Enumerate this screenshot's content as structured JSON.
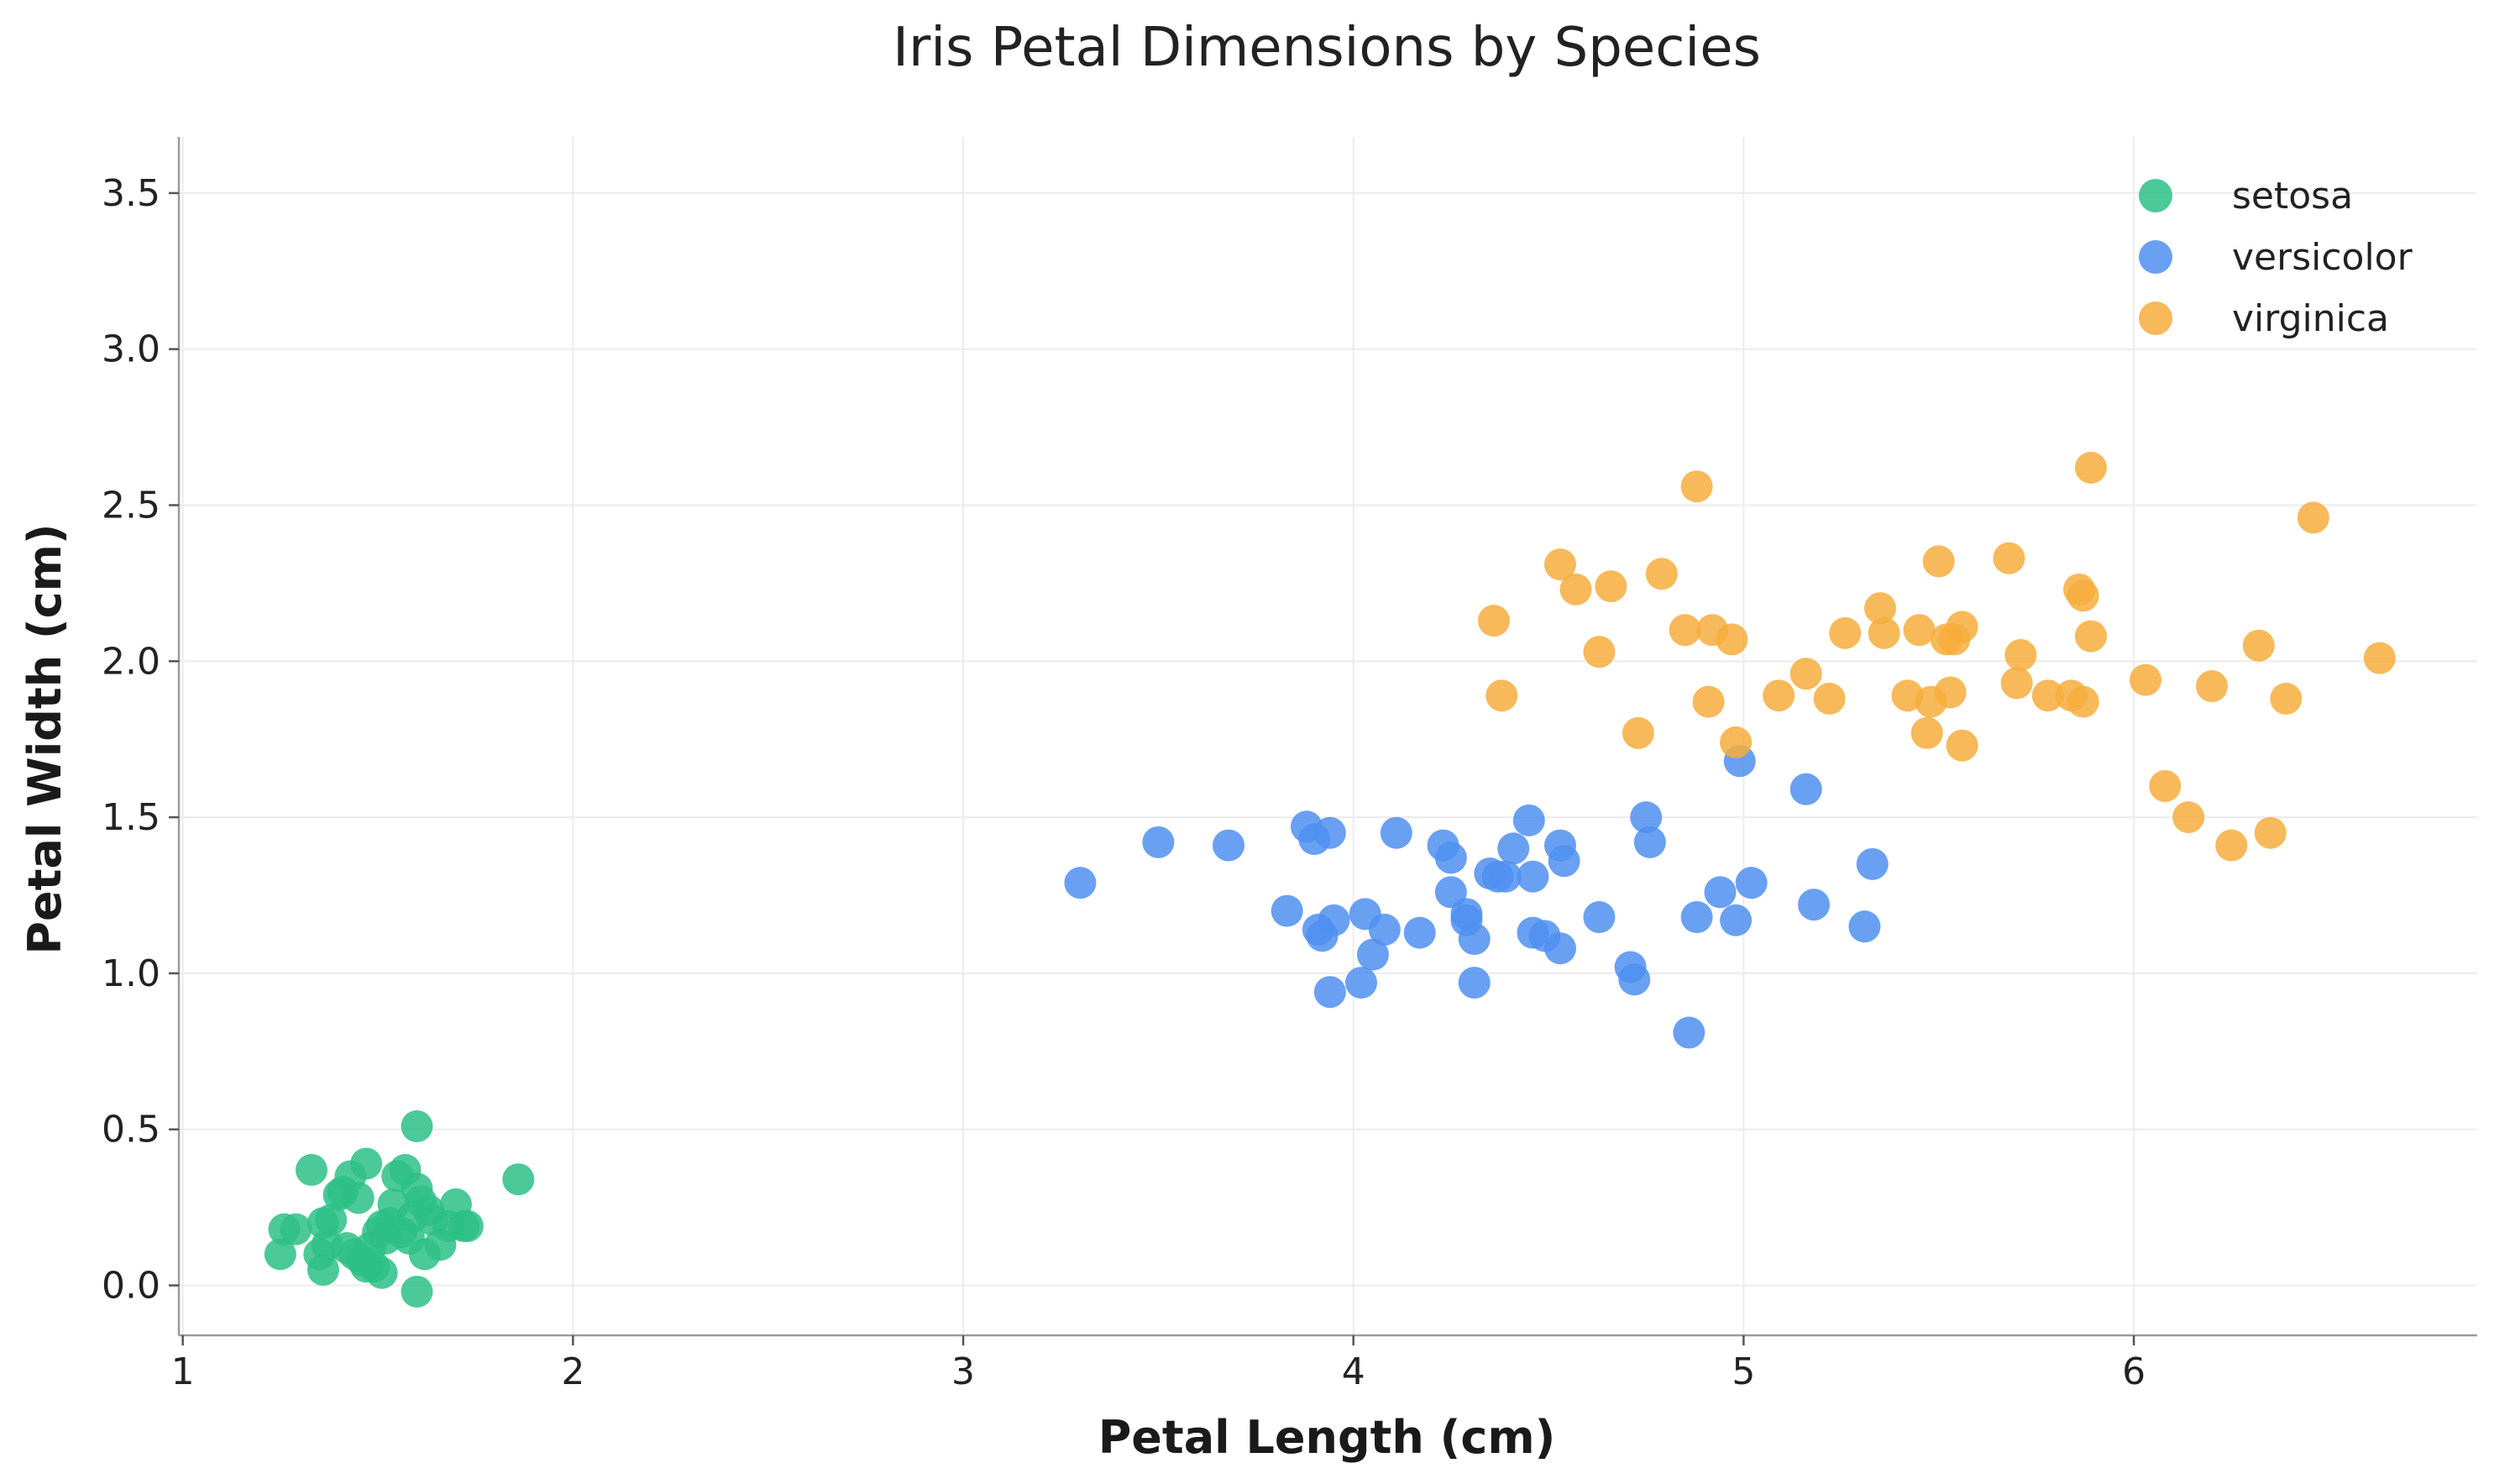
{
  "chart_data": {
    "type": "scatter",
    "title": "Iris Petal Dimensions by Species",
    "xlabel": "Petal Length (cm)",
    "ylabel": "Petal Width (cm)",
    "xlim": [
      0.99,
      6.88
    ],
    "ylim": [
      -0.16,
      3.68
    ],
    "xticks": [
      "1",
      "2",
      "3",
      "4",
      "5",
      "6"
    ],
    "yticks": [
      "0.0",
      "0.5",
      "1.0",
      "1.5",
      "2.0",
      "2.5",
      "3.0",
      "3.5"
    ],
    "grid": true,
    "legend_position": "top-right",
    "series": [
      {
        "name": "setosa",
        "color": "#2dbf86",
        "points": [
          [
            1.25,
            0.1
          ],
          [
            1.26,
            0.18
          ],
          [
            1.29,
            0.18
          ],
          [
            1.33,
            0.37
          ],
          [
            1.35,
            0.1
          ],
          [
            1.36,
            0.2
          ],
          [
            1.36,
            0.05
          ],
          [
            1.37,
            0.13
          ],
          [
            1.38,
            0.21
          ],
          [
            1.4,
            0.29
          ],
          [
            1.41,
            0.3
          ],
          [
            1.42,
            0.12
          ],
          [
            1.43,
            0.35
          ],
          [
            1.44,
            0.1
          ],
          [
            1.45,
            0.28
          ],
          [
            1.46,
            0.08
          ],
          [
            1.47,
            0.39
          ],
          [
            1.47,
            0.06
          ],
          [
            1.48,
            0.12
          ],
          [
            1.49,
            0.06
          ],
          [
            1.5,
            0.17
          ],
          [
            1.51,
            0.19
          ],
          [
            1.51,
            0.04
          ],
          [
            1.52,
            0.15
          ],
          [
            1.53,
            0.2
          ],
          [
            1.54,
            0.26
          ],
          [
            1.55,
            0.35
          ],
          [
            1.56,
            0.17
          ],
          [
            1.57,
            0.37
          ],
          [
            1.58,
            0.15
          ],
          [
            1.59,
            0.22
          ],
          [
            1.6,
            0.31
          ],
          [
            1.6,
            0.51
          ],
          [
            1.6,
            -0.02
          ],
          [
            1.61,
            0.27
          ],
          [
            1.62,
            0.1
          ],
          [
            1.63,
            0.24
          ],
          [
            1.64,
            0.21
          ],
          [
            1.66,
            0.13
          ],
          [
            1.68,
            0.19
          ],
          [
            1.7,
            0.26
          ],
          [
            1.72,
            0.19
          ],
          [
            1.73,
            0.19
          ],
          [
            1.86,
            0.34
          ]
        ]
      },
      {
        "name": "versicolor",
        "color": "#4f8ff0",
        "points": [
          [
            3.3,
            1.29
          ],
          [
            3.5,
            1.42
          ],
          [
            3.68,
            1.41
          ],
          [
            3.83,
            1.2
          ],
          [
            3.88,
            1.47
          ],
          [
            3.9,
            1.43
          ],
          [
            3.91,
            1.14
          ],
          [
            3.92,
            1.12
          ],
          [
            3.94,
            1.45
          ],
          [
            3.94,
            0.94
          ],
          [
            3.95,
            1.17
          ],
          [
            4.02,
            0.97
          ],
          [
            4.03,
            1.19
          ],
          [
            4.05,
            1.06
          ],
          [
            4.08,
            1.14
          ],
          [
            4.11,
            1.45
          ],
          [
            4.17,
            1.13
          ],
          [
            4.23,
            1.41
          ],
          [
            4.25,
            1.37
          ],
          [
            4.25,
            1.26
          ],
          [
            4.29,
            1.19
          ],
          [
            4.29,
            1.17
          ],
          [
            4.31,
            1.11
          ],
          [
            4.31,
            0.97
          ],
          [
            4.35,
            1.32
          ],
          [
            4.37,
            1.31
          ],
          [
            4.39,
            1.31
          ],
          [
            4.41,
            1.4
          ],
          [
            4.45,
            1.49
          ],
          [
            4.46,
            1.31
          ],
          [
            4.46,
            1.13
          ],
          [
            4.49,
            1.12
          ],
          [
            4.53,
            1.41
          ],
          [
            4.54,
            1.36
          ],
          [
            4.53,
            1.08
          ],
          [
            4.63,
            1.18
          ],
          [
            4.71,
            1.02
          ],
          [
            4.72,
            0.98
          ],
          [
            4.75,
            1.5
          ],
          [
            4.76,
            1.42
          ],
          [
            4.86,
            0.81
          ],
          [
            4.88,
            1.18
          ],
          [
            4.94,
            1.26
          ],
          [
            4.98,
            1.17
          ],
          [
            4.99,
            1.68
          ],
          [
            5.02,
            1.29
          ],
          [
            5.16,
            1.59
          ],
          [
            5.18,
            1.22
          ],
          [
            5.31,
            1.15
          ],
          [
            5.33,
            1.35
          ]
        ]
      },
      {
        "name": "virginica",
        "color": "#f6ad3c",
        "points": [
          [
            4.36,
            2.13
          ],
          [
            4.38,
            1.89
          ],
          [
            4.53,
            2.31
          ],
          [
            4.57,
            2.23
          ],
          [
            4.63,
            2.03
          ],
          [
            4.66,
            2.24
          ],
          [
            4.73,
            1.77
          ],
          [
            4.79,
            2.28
          ],
          [
            4.85,
            2.1
          ],
          [
            4.88,
            2.56
          ],
          [
            4.91,
            1.87
          ],
          [
            4.92,
            2.1
          ],
          [
            4.97,
            2.07
          ],
          [
            4.98,
            1.74
          ],
          [
            5.09,
            1.89
          ],
          [
            5.16,
            1.96
          ],
          [
            5.22,
            1.88
          ],
          [
            5.26,
            2.09
          ],
          [
            5.35,
            2.17
          ],
          [
            5.36,
            2.09
          ],
          [
            5.42,
            1.89
          ],
          [
            5.45,
            2.1
          ],
          [
            5.47,
            1.77
          ],
          [
            5.48,
            1.87
          ],
          [
            5.5,
            2.32
          ],
          [
            5.52,
            2.07
          ],
          [
            5.53,
            1.9
          ],
          [
            5.54,
            2.07
          ],
          [
            5.56,
            1.73
          ],
          [
            5.56,
            2.11
          ],
          [
            5.68,
            2.33
          ],
          [
            5.7,
            1.93
          ],
          [
            5.71,
            2.02
          ],
          [
            5.78,
            1.89
          ],
          [
            5.84,
            1.89
          ],
          [
            5.86,
            2.23
          ],
          [
            5.87,
            1.87
          ],
          [
            5.87,
            2.21
          ],
          [
            5.89,
            2.08
          ],
          [
            5.89,
            2.62
          ],
          [
            6.03,
            1.94
          ],
          [
            6.08,
            1.6
          ],
          [
            6.14,
            1.5
          ],
          [
            6.2,
            1.92
          ],
          [
            6.25,
            1.41
          ],
          [
            6.32,
            2.05
          ],
          [
            6.35,
            1.45
          ],
          [
            6.39,
            1.88
          ],
          [
            6.46,
            2.46
          ],
          [
            6.63,
            2.01
          ]
        ]
      }
    ]
  }
}
